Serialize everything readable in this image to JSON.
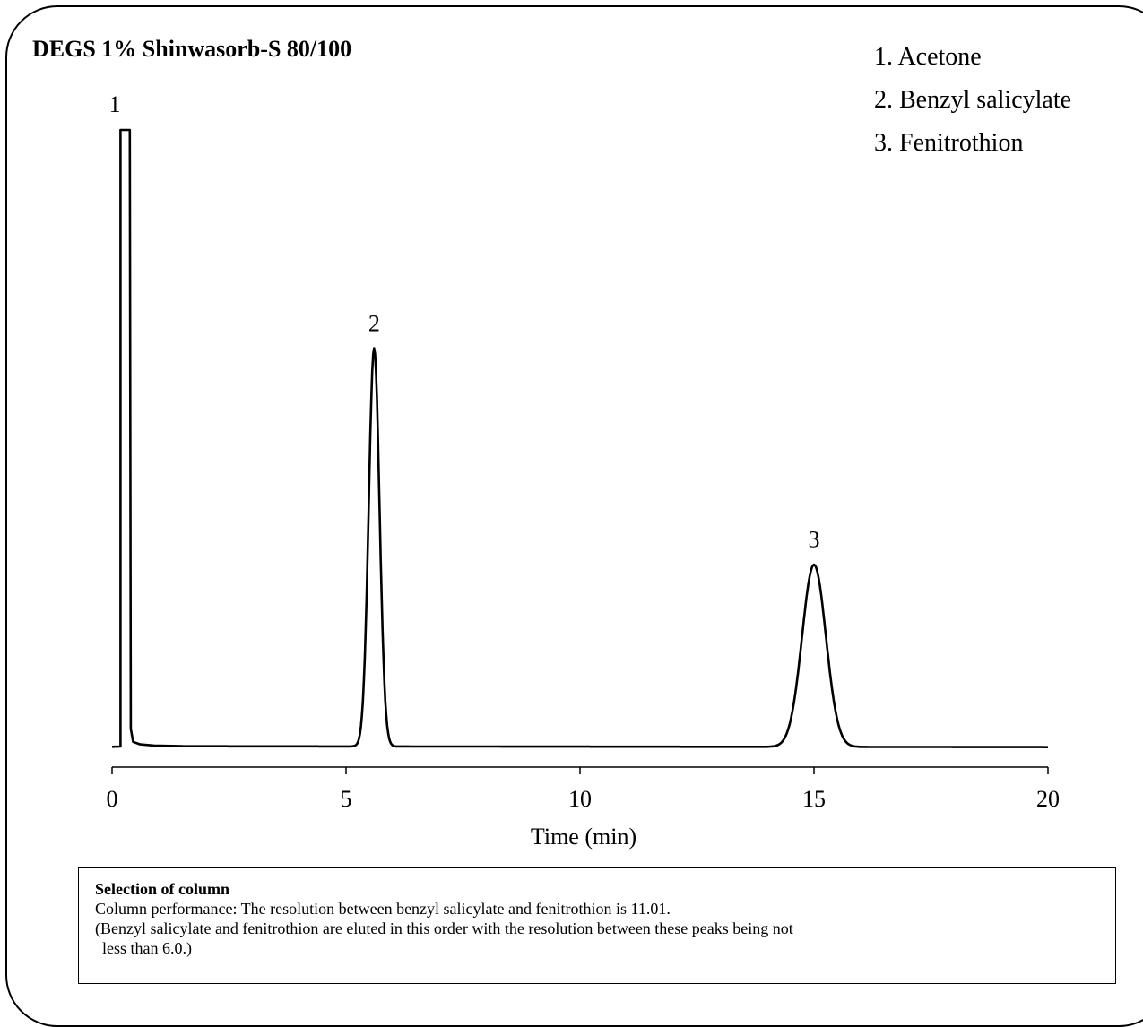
{
  "chart_data": {
    "type": "line",
    "title": "DEGS 1% Shinwasorb-S 80/100",
    "xlabel": "Time (min)",
    "ylabel": "",
    "xlim": [
      0,
      20
    ],
    "ylim": [
      0,
      100
    ],
    "xticks": [
      0,
      5,
      10,
      15,
      20
    ],
    "xtick_labels": [
      "0",
      "5",
      "10",
      "15",
      "20"
    ],
    "grid": false,
    "legend": {
      "placement": "top-right",
      "entries": [
        "1. Acetone",
        "2. Benzyl salicylate",
        "3. Fenitrothion"
      ]
    },
    "peaks": [
      {
        "label": "1",
        "compound": "Acetone",
        "time": 0.25,
        "height": 100,
        "off_scale": true
      },
      {
        "label": "2",
        "compound": "Benzyl salicylate",
        "time": 5.6,
        "height": 64.5
      },
      {
        "label": "3",
        "compound": "Fenitrothion",
        "time": 15.0,
        "height": 29.5
      }
    ]
  },
  "note": {
    "title": "Selection of column",
    "line1": "Column performance: The resolution between benzyl salicylate and fenitrothion is 11.01.",
    "line2": "(Benzyl salicylate and fenitrothion are eluted in this order with the resolution between these peaks being not",
    "line3": "less than 6.0.)"
  }
}
